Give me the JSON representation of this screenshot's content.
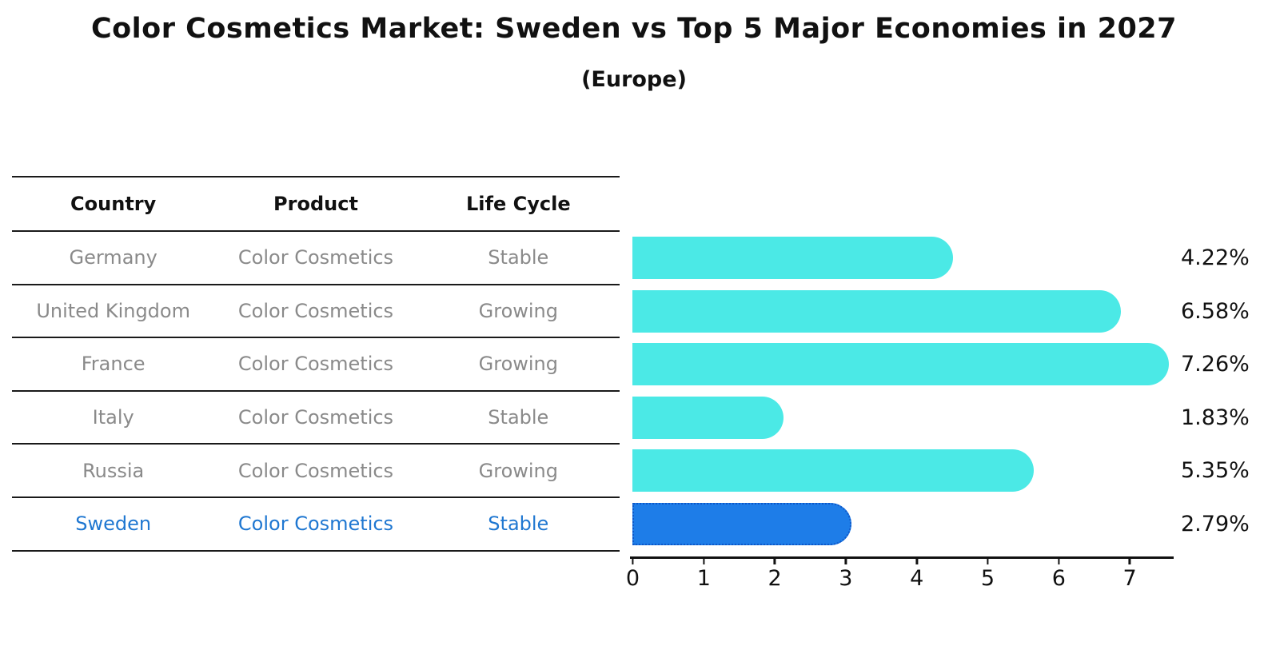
{
  "title": "Color Cosmetics Market: Sweden vs Top 5 Major Economies in 2027",
  "subtitle": "(Europe)",
  "table": {
    "headers": [
      "Country",
      "Product",
      "Life Cycle"
    ],
    "rows": [
      {
        "country": "Germany",
        "product": "Color Cosmetics",
        "life_cycle": "Stable",
        "highlight": false
      },
      {
        "country": "United Kingdom",
        "product": "Color Cosmetics",
        "life_cycle": "Growing",
        "highlight": false
      },
      {
        "country": "France",
        "product": "Color Cosmetics",
        "life_cycle": "Growing",
        "highlight": false
      },
      {
        "country": "Italy",
        "product": "Color Cosmetics",
        "life_cycle": "Stable",
        "highlight": false
      },
      {
        "country": "Russia",
        "product": "Color Cosmetics",
        "life_cycle": "Growing",
        "highlight": false
      },
      {
        "country": "Sweden",
        "product": "Color Cosmetics",
        "life_cycle": "Stable",
        "highlight": true
      }
    ]
  },
  "chart_data": {
    "type": "bar",
    "orientation": "horizontal",
    "title": "Color Cosmetics Market: Sweden vs Top 5 Major Economies in 2027 (Europe)",
    "categories": [
      "Germany",
      "United Kingdom",
      "France",
      "Italy",
      "Russia",
      "Sweden"
    ],
    "values": [
      4.22,
      6.58,
      7.26,
      1.83,
      5.35,
      2.79
    ],
    "value_labels": [
      "4.22%",
      "6.58%",
      "7.26%",
      "1.83%",
      "5.35%",
      "2.79%"
    ],
    "x_ticks": [
      "0",
      "1",
      "2",
      "3",
      "4",
      "5",
      "6",
      "7"
    ],
    "xlim": [
      0,
      7.6
    ],
    "grid": false,
    "legend": false,
    "highlight_index": 5
  },
  "colors": {
    "bar": "#4be9e6",
    "highlight_bar": "#1e7de8",
    "highlight_border": "#0e57c8",
    "highlight_text": "#1f77d1",
    "row_text": "#8a8a8a"
  }
}
